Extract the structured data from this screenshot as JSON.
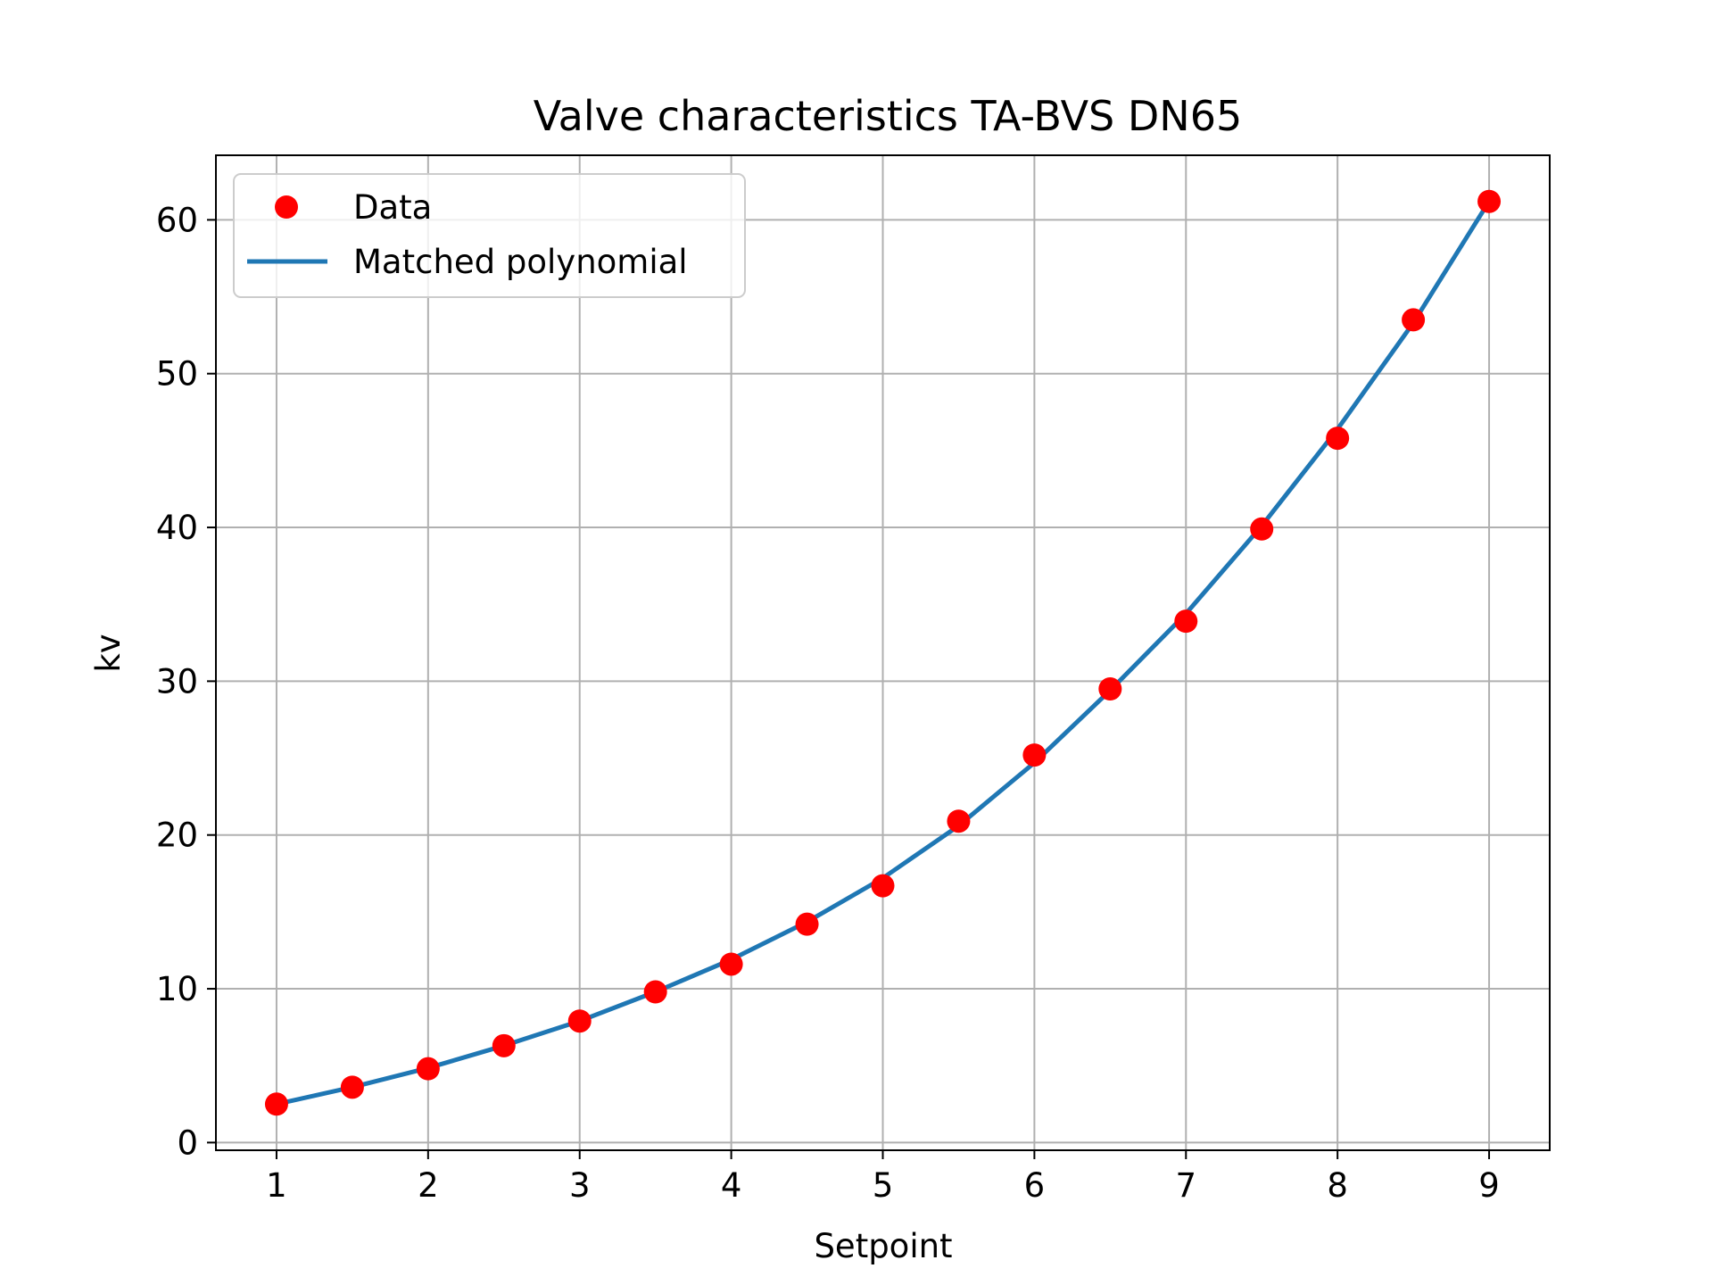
{
  "chart_data": {
    "type": "scatter",
    "title": "Valve characteristics TA-BVS DN65",
    "xlabel": "Setpoint",
    "ylabel": "kv",
    "xlim": [
      0.6,
      9.4
    ],
    "ylim": [
      -0.5,
      64.2
    ],
    "xticks": [
      1,
      2,
      3,
      4,
      5,
      6,
      7,
      8,
      9
    ],
    "yticks": [
      0,
      10,
      20,
      30,
      40,
      50,
      60
    ],
    "grid": true,
    "legend_position": "upper-left",
    "series": [
      {
        "name": "Data",
        "kind": "scatter",
        "color": "#ff0000",
        "x": [
          1,
          1.5,
          2,
          2.5,
          3,
          3.5,
          4,
          4.5,
          5,
          5.5,
          6,
          6.5,
          7,
          7.5,
          8,
          8.5,
          9
        ],
        "y": [
          2.5,
          3.6,
          4.8,
          6.3,
          7.9,
          9.8,
          11.6,
          14.2,
          16.7,
          20.9,
          25.2,
          29.5,
          33.9,
          39.9,
          45.8,
          53.5,
          61.2
        ]
      },
      {
        "name": "Matched polynomial",
        "kind": "line",
        "color": "#1f77b4",
        "x": [
          1,
          1.5,
          2,
          2.5,
          3,
          3.5,
          4,
          4.5,
          5,
          5.5,
          6,
          6.5,
          7,
          7.5,
          8,
          8.5,
          9
        ],
        "y": [
          2.5,
          3.6,
          4.85,
          6.3,
          7.9,
          9.8,
          11.9,
          14.35,
          17.2,
          20.6,
          24.7,
          29.4,
          34.4,
          40.1,
          46.4,
          53.3,
          61.2
        ]
      }
    ]
  }
}
